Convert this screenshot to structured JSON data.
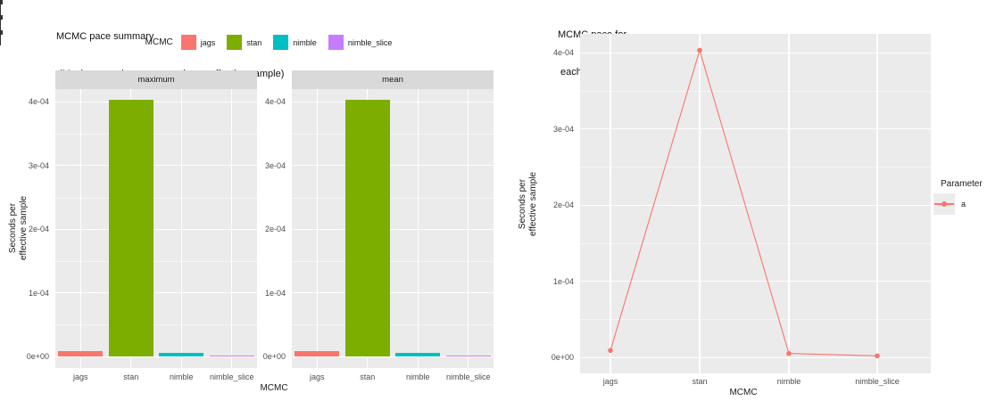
{
  "figure": {
    "background": "#FFFFFF",
    "panel_bg": "#EBEBEB",
    "strip_bg": "#D9D9D9",
    "grid_major_color": "#FFFFFF",
    "tick_label_color": "#4D4D4D"
  },
  "left_chart": {
    "title_line1": "MCMC pace summary",
    "title_line2": " (Maximum and mean seconds per effective sample)",
    "legend": {
      "title": "MCMC",
      "items": [
        {
          "label": "jags",
          "color": "#F8766D"
        },
        {
          "label": "stan",
          "color": "#7CAE00"
        },
        {
          "label": "nimble",
          "color": "#00BFC4"
        },
        {
          "label": "nimble_slice",
          "color": "#C77CFF"
        }
      ]
    },
    "facets": [
      "maximum",
      "mean"
    ],
    "x_axis": {
      "title": "MCMC",
      "categories": [
        "jags",
        "stan",
        "nimble",
        "nimble_slice"
      ]
    },
    "y_axis": {
      "title_line1": "Seconds per",
      "title_line2": "effective sample",
      "tick_labels": [
        "0e+00",
        "1e-04",
        "2e-04",
        "3e-04",
        "4e-04"
      ]
    }
  },
  "right_chart": {
    "title_line1": "MCMC pace for",
    "title_line2": " each parameter",
    "legend": {
      "title": "Parameter",
      "items": [
        {
          "label": "a",
          "color": "#F8766D"
        }
      ]
    },
    "x_axis": {
      "title": "MCMC",
      "categories": [
        "jags",
        "stan",
        "nimble",
        "nimble_slice"
      ]
    },
    "y_axis": {
      "title_line1": "Seconds per",
      "title_line2": "effective sample",
      "tick_labels": [
        "0e+00",
        "1e-04",
        "2e-04",
        "3e-04",
        "4e-04"
      ]
    }
  },
  "chart_data": [
    {
      "type": "bar",
      "title": "MCMC pace summary (Maximum and mean seconds per effective sample)",
      "facets": [
        "maximum",
        "mean"
      ],
      "categories": [
        "jags",
        "stan",
        "nimble",
        "nimble_slice"
      ],
      "series": [
        {
          "name": "maximum",
          "values": [
            9e-06,
            0.000403,
            5e-06,
            2e-06
          ]
        },
        {
          "name": "mean",
          "values": [
            9e-06,
            0.000403,
            5e-06,
            2e-06
          ]
        }
      ],
      "colors": [
        "#F8766D",
        "#7CAE00",
        "#00BFC4",
        "#C77CFF"
      ],
      "xlabel": "MCMC",
      "ylabel": "Seconds per effective sample",
      "ylim": [
        0,
        0.00042
      ],
      "yticks": [
        0,
        0.0001,
        0.0002,
        0.0003,
        0.0004
      ],
      "yticks_minor": [
        5e-05,
        0.00015,
        0.00025,
        0.00035
      ],
      "legend_title": "MCMC",
      "legend_position": "top",
      "grid": true
    },
    {
      "type": "line",
      "title": "MCMC pace for each parameter",
      "x": [
        "jags",
        "stan",
        "nimble",
        "nimble_slice"
      ],
      "series": [
        {
          "name": "a",
          "values": [
            9e-06,
            0.000403,
            5e-06,
            2e-06
          ],
          "color": "#F8766D"
        }
      ],
      "xlabel": "MCMC",
      "ylabel": "Seconds per effective sample",
      "ylim": [
        0,
        0.000425
      ],
      "yticks": [
        0,
        0.0001,
        0.0002,
        0.0003,
        0.0004
      ],
      "yticks_minor": [
        5e-05,
        0.00015,
        0.00025,
        0.00035
      ],
      "legend_title": "Parameter",
      "legend_position": "right",
      "grid": true,
      "markers": true
    }
  ]
}
